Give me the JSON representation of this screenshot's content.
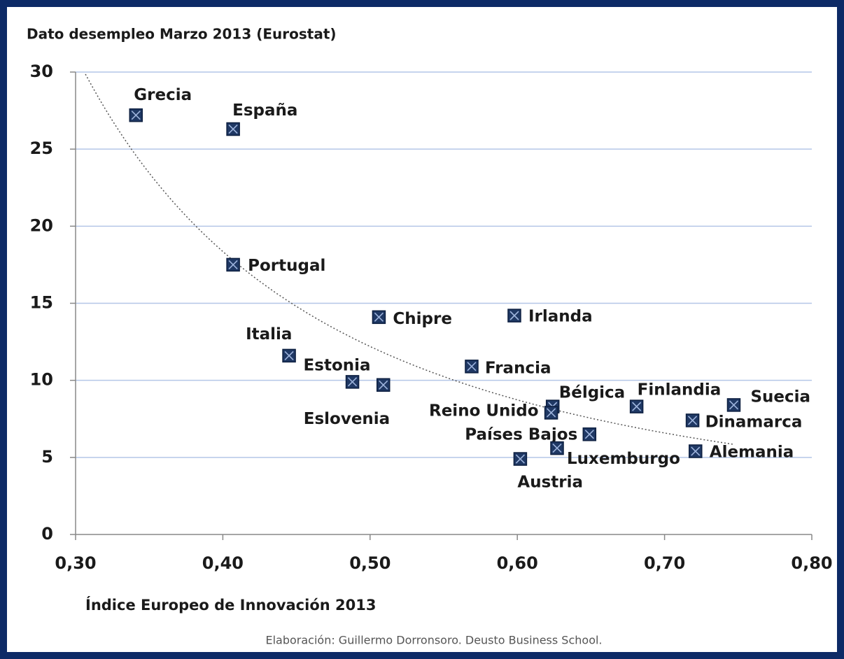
{
  "chart_data": {
    "type": "scatter",
    "title": "Dato desempleo Marzo 2013 (Eurostat)",
    "x_label": "Índice Europeo de Innovación 2013",
    "source": "Elaboración: Guillermo Dorronsoro. Deusto Business School.",
    "labels": [
      "Grecia",
      "España",
      "Portugal",
      "Italia",
      "Estonia",
      "Eslovenia",
      "Chipre",
      "Irlanda",
      "Francia",
      "Bélgica",
      "Reino Unido",
      "Países Bajos",
      "Luxemburgo",
      "Austria",
      "Finlandia",
      "Dinamarca",
      "Suecia",
      "Alemania"
    ],
    "x": [
      0.341,
      0.407,
      0.407,
      0.445,
      0.488,
      0.509,
      0.506,
      0.598,
      0.569,
      0.624,
      0.623,
      0.649,
      0.627,
      0.602,
      0.681,
      0.719,
      0.747,
      0.721
    ],
    "values": [
      27.2,
      26.3,
      17.5,
      11.6,
      9.9,
      9.7,
      14.1,
      14.2,
      10.9,
      8.3,
      7.9,
      6.5,
      5.6,
      4.9,
      8.3,
      7.4,
      8.4,
      5.4
    ],
    "color": "#1f3864",
    "trendline": "power",
    "xlim": [
      0.3,
      0.8
    ],
    "xticks": [
      {
        "value": 0.3,
        "label": "0,30"
      },
      {
        "value": 0.4,
        "label": "0,40"
      },
      {
        "value": 0.5,
        "label": "0,50"
      },
      {
        "value": 0.6,
        "label": "0,60"
      },
      {
        "value": 0.7,
        "label": "0,70"
      },
      {
        "value": 0.8,
        "label": "0,80"
      }
    ],
    "ylim": [
      0,
      30
    ],
    "yticks": [
      0,
      5,
      10,
      15,
      20,
      25,
      30
    ],
    "grid": true
  }
}
